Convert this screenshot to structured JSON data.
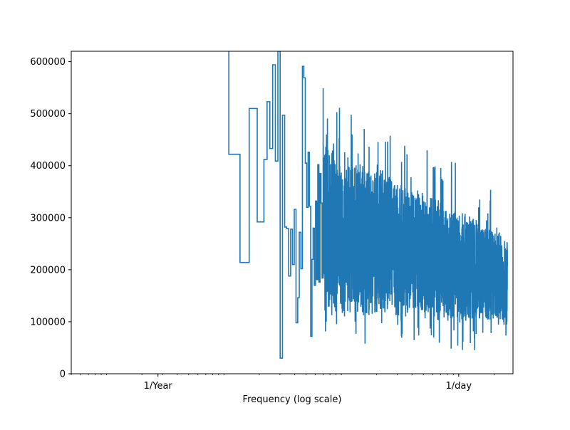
{
  "chart_data": {
    "type": "line",
    "title": "",
    "xlabel": "Frequency (log scale)",
    "ylabel": "",
    "xscale": "log",
    "xlim": [
      0.0005,
      2.9
    ],
    "ylim": [
      0,
      620000
    ],
    "grid": false,
    "legend": "none",
    "x_ticks": [
      {
        "value": 0.0027397,
        "label": "1/Year"
      },
      {
        "value": 1,
        "label": "1/day"
      }
    ],
    "y_ticks": [
      {
        "value": 0,
        "label": "0"
      },
      {
        "value": 100000,
        "label": "100000"
      },
      {
        "value": 200000,
        "label": "200000"
      },
      {
        "value": 300000,
        "label": "300000"
      },
      {
        "value": 400000,
        "label": "400000"
      },
      {
        "value": 500000,
        "label": "500000"
      },
      {
        "value": 600000,
        "label": "600000"
      }
    ],
    "series": [
      {
        "color": "#1f77b4",
        "step": true,
        "x": [
          0.011,
          0.011,
          0.0137,
          0.0164,
          0.0192,
          0.0219,
          0.0233,
          0.0246,
          0.026,
          0.0274,
          0.0288,
          0.0301,
          0.0315,
          0.0329,
          0.0342,
          0.0356,
          0.037,
          0.0383,
          0.0397,
          0.0411,
          0.0425,
          0.0438,
          0.0452,
          0.0466,
          0.0479,
          0.0493,
          0.0507,
          0.0521,
          0.0534,
          0.0548,
          0.0562,
          0.0575,
          0.0589,
          0.0603,
          0.0616,
          0.063,
          0.0644,
          0.0658,
          0.0671,
          0.0685,
          0.07
        ],
        "values": [
          620000,
          422000,
          214000,
          510000,
          292000,
          412000,
          523000,
          433000,
          594000,
          409000,
          620000,
          30000,
          497000,
          282000,
          279000,
          188000,
          278000,
          210000,
          316000,
          98000,
          146000,
          272000,
          202000,
          591000,
          569000,
          405000,
          320000,
          426000,
          322000,
          72000,
          220000,
          280000,
          170000,
          332000,
          181000,
          402000,
          176000,
          385000,
          328000,
          184000,
          549000
        ]
      }
    ],
    "noise_band": {
      "x_range": [
        0.07,
        2.6
      ],
      "envelope_upper_start": 440000,
      "envelope_upper_end": 270000,
      "envelope_lower_start": 120000,
      "envelope_lower_end": 90000
    }
  }
}
